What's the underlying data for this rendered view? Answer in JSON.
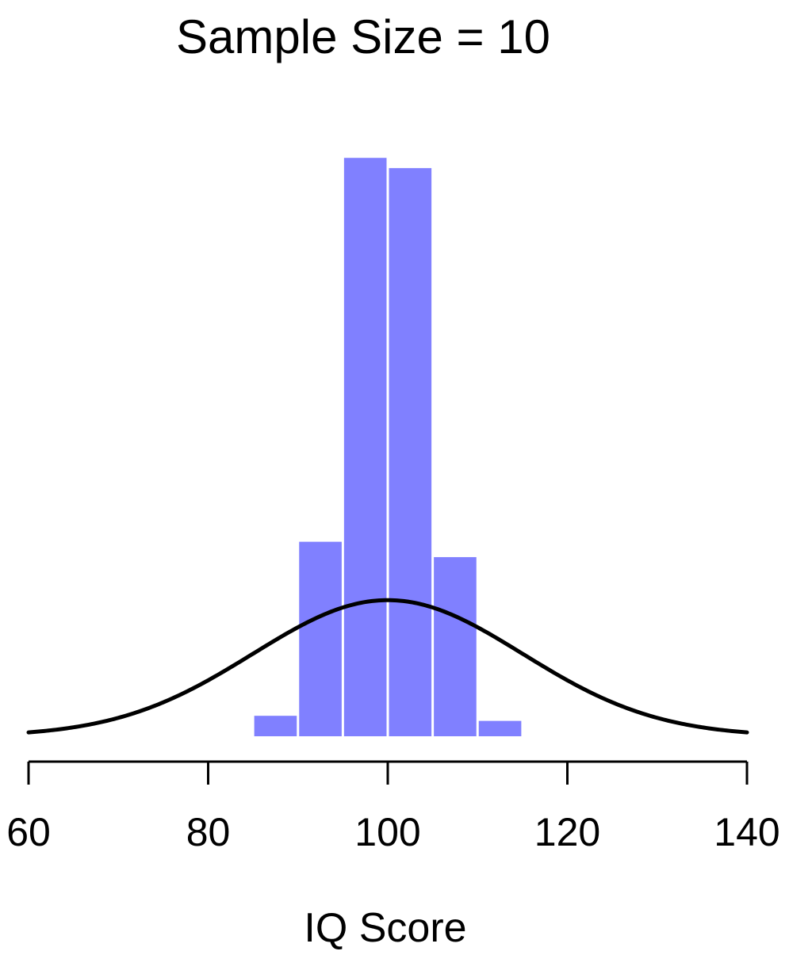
{
  "chart_data": {
    "type": "bar",
    "title": "Sample Size = 10",
    "xlabel": "IQ Score",
    "ylabel": "",
    "xlim": [
      60,
      140
    ],
    "x_ticks": [
      60,
      80,
      100,
      120,
      140
    ],
    "bar_color": "#8080ff",
    "bins": [
      {
        "start": 85,
        "end": 90,
        "density": 0.004
      },
      {
        "start": 90,
        "end": 95,
        "density": 0.038
      },
      {
        "start": 95,
        "end": 100,
        "density": 0.113
      },
      {
        "start": 100,
        "end": 105,
        "density": 0.111
      },
      {
        "start": 105,
        "end": 110,
        "density": 0.035
      },
      {
        "start": 110,
        "end": 115,
        "density": 0.003
      }
    ],
    "curve": {
      "type": "normal",
      "mean": 100,
      "sd": 15,
      "color": "#000000"
    },
    "ylim": [
      0,
      0.12
    ],
    "grid": false
  }
}
